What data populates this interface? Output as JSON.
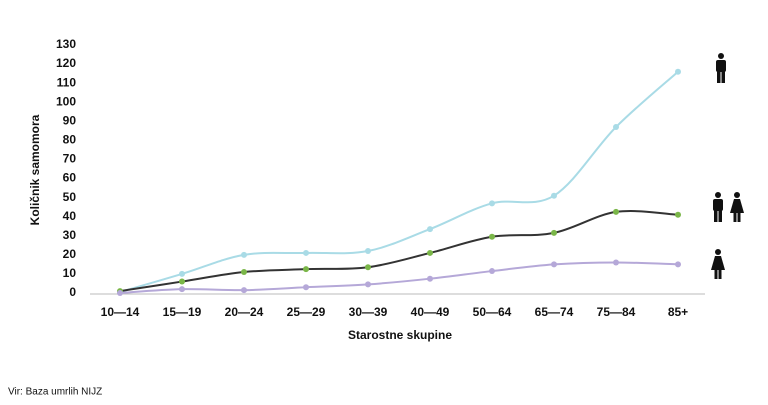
{
  "chart_data": {
    "type": "line",
    "y_label": "Količnik samomora",
    "x_label": "Starostne skupine",
    "source": "Vir: Baza umrlih NIJZ",
    "categories": [
      "10—14",
      "15—19",
      "20—24",
      "25—29",
      "30—39",
      "40—49",
      "50—64",
      "65—74",
      "75—84",
      "85+"
    ],
    "series": [
      {
        "color": "#a9dbe6",
        "marker_color": "#a9dbe6",
        "values": [
          0.5,
          10,
          20,
          21,
          22,
          33.5,
          47,
          51,
          87,
          116
        ]
      },
      {
        "color": "#333333",
        "marker_color": "#7ab648",
        "values": [
          1,
          6,
          11,
          12.5,
          13.5,
          21,
          29.5,
          31.5,
          42.5,
          41
        ]
      },
      {
        "color": "#b5a8d8",
        "marker_color": "#b5a8d8",
        "values": [
          0,
          2,
          1.5,
          3,
          4.5,
          7.5,
          11.5,
          15,
          16,
          15
        ]
      }
    ],
    "ylim": [
      0,
      130
    ],
    "yticks": [
      0,
      10,
      20,
      30,
      40,
      50,
      60,
      70,
      80,
      90,
      100,
      110,
      120,
      130
    ],
    "grid": false
  }
}
